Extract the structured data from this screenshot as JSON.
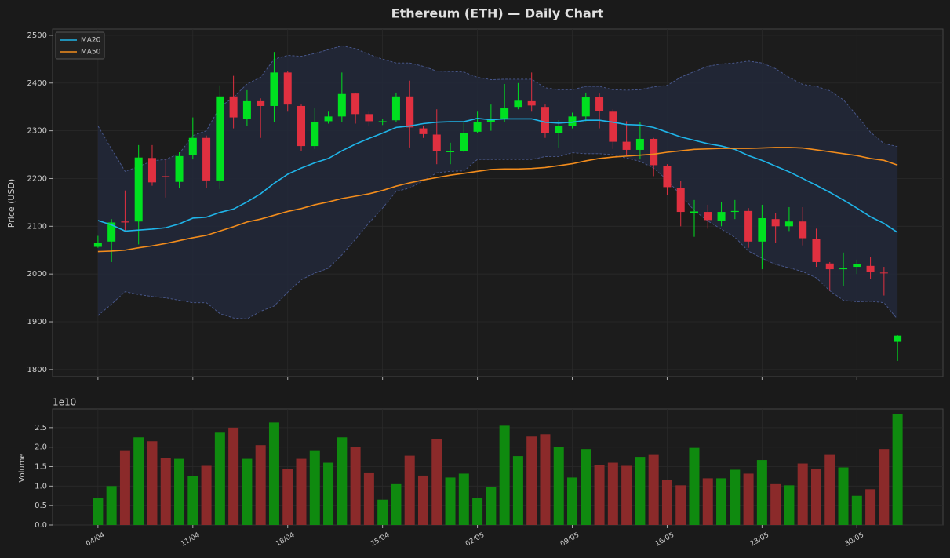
{
  "chart_data": [
    {
      "type": "candlestick",
      "title": "Ethereum (ETH) — Daily Chart",
      "ylabel": "Price (USD)",
      "open": [
        2057,
        2068,
        2110,
        2110,
        2243,
        2205,
        2193,
        2250,
        2285,
        2196,
        2372,
        2325,
        2362,
        2352,
        2422,
        2352,
        2268,
        2320,
        2330,
        2378,
        2335,
        2318,
        2322,
        2372,
        2305,
        2292,
        2255,
        2258,
        2298,
        2318,
        2325,
        2350,
        2362,
        2350,
        2295,
        2310,
        2330,
        2370,
        2340,
        2277,
        2260,
        2283,
        2226,
        2180,
        2128,
        2130,
        2112,
        2130,
        2132,
        2068,
        2115,
        2100,
        2110,
        2073,
        2022,
        2010,
        2015,
        2017,
        2003,
        1858
      ],
      "high": [
        2080,
        2115,
        2175,
        2270,
        2270,
        2240,
        2255,
        2328,
        2290,
        2395,
        2415,
        2385,
        2368,
        2465,
        2425,
        2355,
        2348,
        2340,
        2422,
        2380,
        2340,
        2325,
        2380,
        2405,
        2310,
        2345,
        2275,
        2318,
        2340,
        2355,
        2398,
        2400,
        2422,
        2355,
        2322,
        2338,
        2380,
        2378,
        2345,
        2320,
        2318,
        2285,
        2230,
        2195,
        2155,
        2145,
        2150,
        2155,
        2138,
        2145,
        2128,
        2140,
        2140,
        2095,
        2025,
        2045,
        2030,
        2035,
        2015,
        1872
      ],
      "low": [
        2055,
        2025,
        2090,
        2062,
        2185,
        2160,
        2180,
        2240,
        2180,
        2178,
        2305,
        2310,
        2285,
        2318,
        2340,
        2258,
        2262,
        2315,
        2318,
        2315,
        2310,
        2312,
        2318,
        2265,
        2285,
        2230,
        2230,
        2255,
        2295,
        2300,
        2318,
        2345,
        2340,
        2285,
        2265,
        2305,
        2320,
        2305,
        2262,
        2250,
        2240,
        2205,
        2165,
        2100,
        2078,
        2095,
        2100,
        2115,
        2055,
        2010,
        2065,
        2090,
        2060,
        2015,
        1965,
        1975,
        2000,
        1990,
        1955,
        1818
      ],
      "close": [
        2066,
        2108,
        2108,
        2244,
        2192,
        2203,
        2247,
        2285,
        2196,
        2372,
        2328,
        2362,
        2352,
        2422,
        2355,
        2268,
        2318,
        2330,
        2377,
        2335,
        2320,
        2320,
        2372,
        2307,
        2293,
        2257,
        2258,
        2295,
        2318,
        2325,
        2347,
        2363,
        2353,
        2295,
        2310,
        2330,
        2370,
        2342,
        2277,
        2260,
        2283,
        2228,
        2182,
        2130,
        2131,
        2113,
        2130,
        2132,
        2068,
        2117,
        2100,
        2110,
        2075,
        2025,
        2010,
        2012,
        2020,
        2005,
        2002,
        1871
      ],
      "up_color": "#00e020",
      "down_color": "#e03040",
      "series": [
        {
          "name": "MA20",
          "color": "#1fb4e8",
          "values": [
            2112,
            2103,
            2090,
            2092,
            2094,
            2097,
            2105,
            2117,
            2119,
            2129,
            2136,
            2151,
            2168,
            2190,
            2209,
            2222,
            2233,
            2242,
            2258,
            2272,
            2284,
            2295,
            2307,
            2310,
            2315,
            2318,
            2319,
            2319,
            2326,
            2323,
            2325,
            2325,
            2325,
            2318,
            2316,
            2318,
            2322,
            2322,
            2318,
            2313,
            2312,
            2307,
            2297,
            2287,
            2280,
            2273,
            2268,
            2261,
            2248,
            2238,
            2226,
            2214,
            2200,
            2186,
            2171,
            2155,
            2138,
            2120,
            2106,
            2087
          ]
        },
        {
          "name": "MA50",
          "color": "#f28c1c",
          "values": [
            2047,
            2048,
            2050,
            2055,
            2059,
            2064,
            2070,
            2076,
            2081,
            2090,
            2099,
            2109,
            2115,
            2123,
            2131,
            2137,
            2145,
            2151,
            2158,
            2163,
            2168,
            2175,
            2184,
            2191,
            2197,
            2202,
            2207,
            2211,
            2215,
            2219,
            2220,
            2220,
            2221,
            2223,
            2227,
            2231,
            2237,
            2242,
            2245,
            2247,
            2249,
            2251,
            2255,
            2258,
            2261,
            2262,
            2263,
            2263,
            2263,
            2264,
            2265,
            2265,
            2264,
            2260,
            2256,
            2252,
            2248,
            2242,
            2238,
            2228
          ]
        }
      ],
      "band": {
        "color": "#4a5a90",
        "fill": "#222838",
        "upper": [
          2310,
          2262,
          2215,
          2225,
          2237,
          2240,
          2252,
          2290,
          2300,
          2350,
          2370,
          2398,
          2412,
          2450,
          2458,
          2456,
          2462,
          2470,
          2478,
          2472,
          2460,
          2450,
          2442,
          2442,
          2435,
          2425,
          2424,
          2423,
          2412,
          2407,
          2408,
          2408,
          2408,
          2390,
          2386,
          2386,
          2393,
          2393,
          2386,
          2385,
          2386,
          2392,
          2395,
          2412,
          2424,
          2435,
          2440,
          2442,
          2446,
          2442,
          2430,
          2412,
          2397,
          2393,
          2384,
          2365,
          2332,
          2297,
          2273,
          2267
        ],
        "lower": [
          1913,
          1937,
          1963,
          1957,
          1953,
          1950,
          1945,
          1940,
          1940,
          1917,
          1908,
          1906,
          1922,
          1933,
          1962,
          1988,
          2002,
          2012,
          2040,
          2073,
          2107,
          2138,
          2173,
          2180,
          2195,
          2212,
          2215,
          2216,
          2240,
          2240,
          2240,
          2240,
          2240,
          2246,
          2246,
          2254,
          2252,
          2252,
          2250,
          2243,
          2236,
          2222,
          2197,
          2165,
          2133,
          2111,
          2094,
          2077,
          2048,
          2033,
          2020,
          2013,
          2005,
          1992,
          1965,
          1945,
          1942,
          1943,
          1940,
          1905
        ]
      },
      "ylim": [
        1785,
        2513
      ],
      "yticks": [
        1800,
        1900,
        2000,
        2100,
        2200,
        2300,
        2400,
        2500
      ],
      "grid": true,
      "legend": "upper left"
    },
    {
      "type": "bar",
      "ylabel": "Volume",
      "offset_label": "1e10",
      "categories": [
        "04/04",
        null,
        null,
        null,
        null,
        null,
        null,
        "11/04",
        null,
        null,
        null,
        null,
        null,
        null,
        "18/04",
        null,
        null,
        null,
        null,
        null,
        null,
        "25/04",
        null,
        null,
        null,
        null,
        null,
        null,
        "02/05",
        null,
        null,
        null,
        null,
        null,
        null,
        "09/05",
        null,
        null,
        null,
        null,
        null,
        null,
        "16/05",
        null,
        null,
        null,
        null,
        null,
        null,
        "23/05",
        null,
        null,
        null,
        null,
        null,
        null,
        "30/05",
        null,
        null,
        null
      ],
      "values": [
        0.7,
        1.0,
        1.9,
        2.25,
        2.15,
        1.72,
        1.7,
        1.25,
        1.52,
        2.37,
        2.5,
        1.7,
        2.05,
        2.63,
        1.43,
        1.7,
        1.9,
        1.6,
        2.25,
        2.0,
        1.33,
        0.65,
        1.05,
        1.78,
        1.27,
        2.2,
        1.22,
        1.32,
        0.7,
        0.97,
        2.55,
        1.77,
        2.27,
        2.33,
        2.0,
        1.22,
        1.95,
        1.55,
        1.6,
        1.52,
        1.75,
        1.8,
        1.15,
        1.02,
        1.98,
        1.2,
        1.2,
        1.42,
        1.32,
        1.67,
        1.05,
        1.02,
        1.58,
        1.45,
        1.8,
        1.48,
        0.75,
        0.92,
        1.95,
        2.85
      ],
      "up_color": "#0f8a0f",
      "down_color": "#8b2a2a",
      "ylim": [
        0,
        2.98
      ],
      "yticks": [
        {
          "value": 0,
          "label": "0.0"
        },
        0.5,
        {
          "value": 1,
          "label": "1.0"
        },
        1.5,
        {
          "value": 2,
          "label": "2.0"
        },
        2.5
      ],
      "grid": true
    }
  ]
}
